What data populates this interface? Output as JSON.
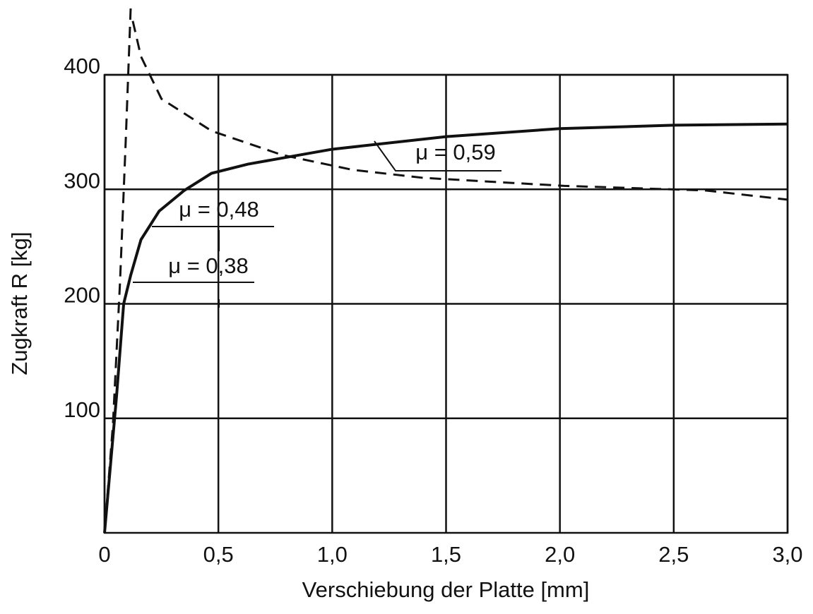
{
  "chart_data": {
    "type": "line",
    "xlabel": "Verschiebung der Platte [mm]",
    "ylabel": "Zugkraft R [kg]",
    "xlim": [
      0,
      3.0
    ],
    "ylim": [
      0,
      400
    ],
    "xticks": [
      0,
      {
        "value": 0.5,
        "label": "0,5"
      },
      {
        "value": 1.0,
        "label": "1,0"
      },
      {
        "value": 1.5,
        "label": "1,5"
      },
      {
        "value": 2.0,
        "label": "2,0"
      },
      {
        "value": 2.5,
        "label": "2,5"
      },
      {
        "value": 3.0,
        "label": "3,0"
      }
    ],
    "yticks": [
      100,
      200,
      300,
      400
    ],
    "grid": true,
    "series": [
      {
        "color": "#111111",
        "linestyle": "solid",
        "x": [
          0,
          0.053,
          0.084,
          0.115,
          0.16,
          0.24,
          0.35,
          0.47,
          0.63,
          1.0,
          1.5,
          2.0,
          2.5,
          3.0
        ],
        "values": [
          0,
          120,
          200,
          225,
          256,
          281,
          299,
          314,
          322,
          335,
          346,
          353,
          356,
          357
        ]
      },
      {
        "color": "#111111",
        "linestyle": "dashed",
        "x": [
          0,
          0.037,
          0.068,
          0.093,
          0.115,
          null,
          0.124,
          0.16,
          0.25,
          0.47,
          0.78,
          1.09,
          1.4,
          2.02,
          2.64,
          3.0
        ],
        "values": [
          0,
          95,
          219,
          342,
          459,
          null,
          447,
          416,
          379,
          351,
          330,
          317,
          310,
          303,
          299,
          291
        ]
      }
    ],
    "annotations": [
      {
        "text": "μ = 0,59"
      },
      {
        "text": "μ = 0,48"
      },
      {
        "text": "μ = 0,38"
      }
    ]
  }
}
